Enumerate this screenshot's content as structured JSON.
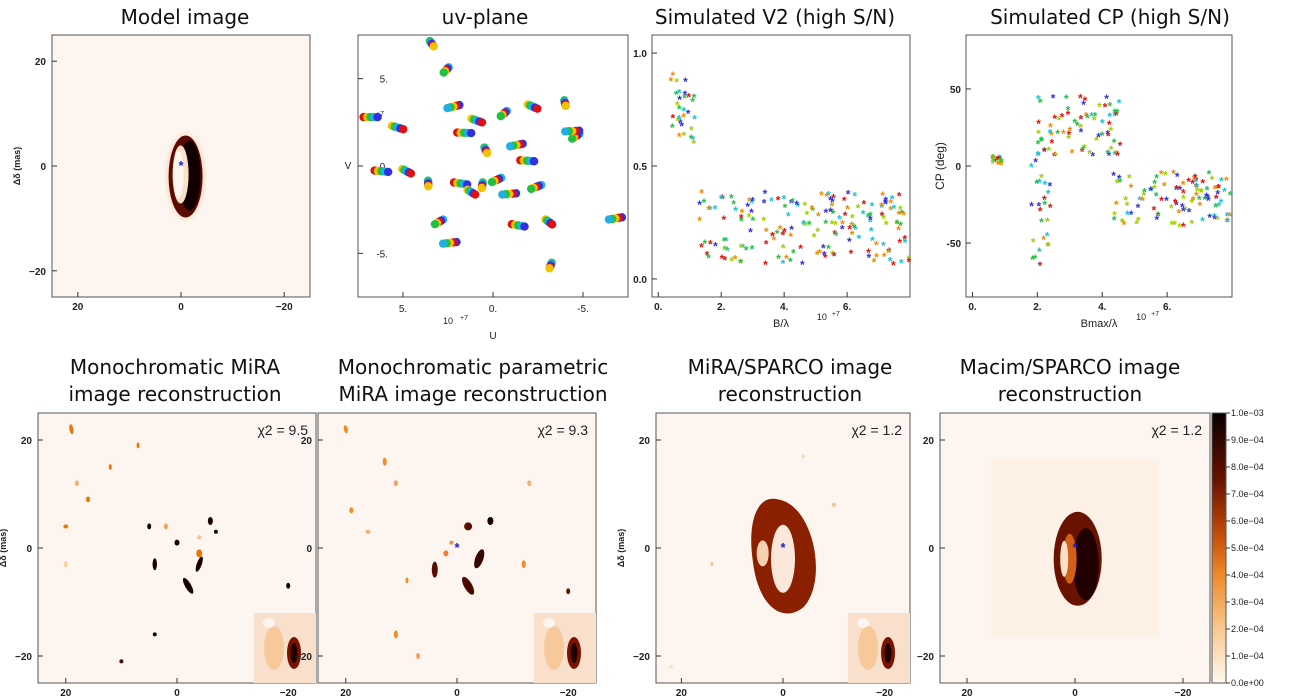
{
  "titles": {
    "model": "Model image",
    "uv": "uv-plane",
    "v2": "Simulated V2 (high S/N)",
    "cp": "Simulated CP (high S/N)",
    "mira_l1": "Monochromatic MiRA",
    "mira_l2": "image reconstruction",
    "param_l1": "Monochromatic parametric",
    "param_l2": "MiRA image reconstruction",
    "sparco_l1": "MiRA/SPARCO image",
    "sparco_l2": "reconstruction",
    "macim_l1": "Macim/SPARCO image",
    "macim_l2": "reconstruction"
  },
  "colors": {
    "dark": "#1a0000",
    "ring": "#5a0a00",
    "orange": "#e8780a",
    "star": "#1a1acc",
    "background": "#fdf5ef"
  },
  "chart_data": [
    {
      "type": "heatmap",
      "panel": "Model image",
      "ylabel": "Δδ (mas)",
      "xticks": [
        "20",
        "0",
        "−20"
      ],
      "yticks": [
        "20",
        "0",
        "−20"
      ],
      "xlim": [
        25,
        -25
      ],
      "ylim": [
        -25,
        25
      ],
      "features": {
        "ring_center": [
          -0.5,
          -2
        ],
        "ring_radii_mas": [
          3,
          8
        ],
        "star_position": [
          0,
          0
        ]
      }
    },
    {
      "type": "scatter",
      "panel": "uv-plane",
      "xlabel": "U",
      "ylabel": "V",
      "xticks": [
        "5.",
        "0.",
        "-5."
      ],
      "yticks": [
        "5.",
        "0.",
        "-5."
      ],
      "xlim": [
        7.5,
        -7.5
      ],
      "ylim": [
        -7.5,
        7.5
      ],
      "multiplier": "10+7",
      "tracks": [
        {
          "u": 6.8,
          "v": 2.8
        },
        {
          "u": 5.3,
          "v": 2.2
        },
        {
          "u": 3.4,
          "v": 7.0
        },
        {
          "u": 2.6,
          "v": 5.5
        },
        {
          "u": 2.2,
          "v": 3.4
        },
        {
          "u": 1.6,
          "v": 1.9
        },
        {
          "u": 0.9,
          "v": 2.6
        },
        {
          "u": 0.4,
          "v": 0.9
        },
        {
          "u": -0.6,
          "v": 3.0
        },
        {
          "u": -1.3,
          "v": 1.2
        },
        {
          "u": -1.9,
          "v": 0.3
        },
        {
          "u": -2.2,
          "v": 3.4
        },
        {
          "u": -4.0,
          "v": 3.6
        },
        {
          "u": -4.6,
          "v": 1.7
        },
        {
          "u": -6.8,
          "v": -3.0
        },
        {
          "u": 6.2,
          "v": -0.3
        },
        {
          "u": 4.8,
          "v": -0.3
        },
        {
          "u": 3.6,
          "v": -1.0
        },
        {
          "u": 3.0,
          "v": -3.2
        },
        {
          "u": 2.4,
          "v": -4.4
        },
        {
          "u": 1.8,
          "v": -1.0
        },
        {
          "u": 1.2,
          "v": -1.5
        },
        {
          "u": 0.6,
          "v": -1.1
        },
        {
          "u": -0.2,
          "v": -0.8
        },
        {
          "u": -0.9,
          "v": -1.6
        },
        {
          "u": -1.4,
          "v": -3.4
        },
        {
          "u": -3.1,
          "v": -3.2
        },
        {
          "u": -3.2,
          "v": -5.7
        },
        {
          "u": -2.4,
          "v": -1.2
        },
        {
          "u": -4.4,
          "v": 2.0
        }
      ]
    },
    {
      "type": "scatter",
      "panel": "Simulated V2 (high S/N)",
      "xlabel": "B/λ",
      "ylabel": "",
      "xticks": [
        "0.",
        "2.",
        "4.",
        "6."
      ],
      "yticks": [
        "0.0",
        "0.5",
        "1.0"
      ],
      "xlim": [
        -0.2,
        8.0
      ],
      "ylim": [
        -0.08,
        1.08
      ],
      "multiplier": "10+7",
      "groups": [
        {
          "x_range": [
            0.4,
            1.2
          ],
          "y_range": [
            0.58,
            0.9
          ]
        },
        {
          "x_range": [
            1.3,
            8.0
          ],
          "y_range": [
            0.06,
            0.38
          ]
        }
      ]
    },
    {
      "type": "scatter",
      "panel": "Simulated CP (high S/N)",
      "xlabel": "Bmax/λ",
      "ylabel": "CP (deg)",
      "xticks": [
        "0.",
        "2.",
        "4.",
        "6."
      ],
      "yticks": [
        "50",
        "0",
        "-50"
      ],
      "xlim": [
        -0.2,
        8.0
      ],
      "ylim": [
        -85,
        85
      ],
      "multiplier": "10+7",
      "groups": [
        {
          "x_range": [
            0.6,
            0.9
          ],
          "y_range": [
            0,
            5
          ]
        },
        {
          "x_range": [
            1.8,
            2.4
          ],
          "y_range": [
            -65,
            5
          ]
        },
        {
          "x_range": [
            2.0,
            4.6
          ],
          "y_range": [
            5,
            45
          ]
        },
        {
          "x_range": [
            4.3,
            8.0
          ],
          "y_range": [
            -40,
            -5
          ]
        }
      ]
    },
    {
      "type": "heatmap",
      "panel": "Monochromatic MiRA image reconstruction",
      "ylabel": "Δδ (mas)",
      "xticks": [
        "20",
        "0",
        "−20"
      ],
      "yticks": [
        "20",
        "0",
        "−20"
      ],
      "xlim": [
        25,
        -25
      ],
      "ylim": [
        -25,
        25
      ],
      "annotation": "χ2 = 9.5"
    },
    {
      "type": "heatmap",
      "panel": "Monochromatic parametric MiRA image reconstruction",
      "ylabel": "",
      "xticks": [
        "20",
        "0",
        "−20"
      ],
      "yticks": [
        "20",
        "0",
        "−20"
      ],
      "xlim": [
        25,
        -25
      ],
      "ylim": [
        -25,
        25
      ],
      "annotation": "χ2 = 9.3"
    },
    {
      "type": "heatmap",
      "panel": "MiRA/SPARCO image reconstruction",
      "ylabel": "Δδ (mas)",
      "xticks": [
        "20",
        "0",
        "−20"
      ],
      "yticks": [
        "20",
        "0",
        "−20"
      ],
      "xlim": [
        25,
        -25
      ],
      "ylim": [
        -25,
        25
      ],
      "annotation": "χ2 = 1.2"
    },
    {
      "type": "heatmap",
      "panel": "Macim/SPARCO image reconstruction",
      "ylabel": "",
      "xticks": [
        "20",
        "0",
        "−20"
      ],
      "yticks": [
        "20",
        "0",
        "−20"
      ],
      "xlim": [
        25,
        -25
      ],
      "ylim": [
        -25,
        25
      ],
      "annotation": "χ2 = 1.2",
      "colorbar": {
        "min": 0,
        "max": 0.001,
        "ticks": [
          "1.0e−03",
          "9.0e−04",
          "8.0e−04",
          "7.0e−04",
          "6.0e−04",
          "5.0e−04",
          "4.0e−04",
          "3.0e−04",
          "2.0e−04",
          "1.0e−04",
          "0.0e+00"
        ]
      }
    }
  ]
}
